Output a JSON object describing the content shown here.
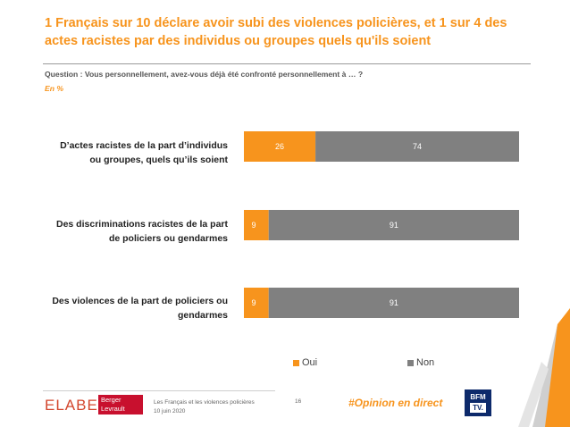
{
  "header": {
    "title": "1 Français sur 10 déclare avoir subi des violences policières, et 1 sur 4 des actes racistes par des individus ou groupes quels qu'ils soient",
    "question": "Question : Vous personnellement, avez-vous déjà été confronté personnellement à … ?",
    "unit": "En %"
  },
  "chart_data": {
    "type": "bar",
    "orientation": "horizontal",
    "stacked": true,
    "categories": [
      "D’actes racistes de la part d’individus ou groupes, quels qu’ils soient",
      "Des discriminations racistes de la part de policiers ou gendarmes",
      "Des violences de la part de policiers ou gendarmes"
    ],
    "category_lines": [
      [
        "D’actes racistes de la part d’individus",
        "ou groupes, quels qu’ils soient"
      ],
      [
        "Des discriminations racistes de la part",
        "de policiers ou gendarmes"
      ],
      [
        "Des violences de la part de policiers ou",
        "gendarmes"
      ]
    ],
    "series": [
      {
        "name": "Oui",
        "color": "#f7941d",
        "values": [
          26,
          9,
          9
        ]
      },
      {
        "name": "Non",
        "color": "#808080",
        "values": [
          74,
          91,
          91
        ]
      }
    ],
    "xlim": [
      0,
      100
    ],
    "legend_position": "bottom",
    "grid": false
  },
  "footer": {
    "brand_elabe": "ELABE",
    "brand_partner": "Berger Levrault",
    "source_line1": "Les Français et les violences policières",
    "source_line2": "10 juin 2020",
    "page_number": "16",
    "hashtag": "#Opinion en direct",
    "media_logo_top": "BFM",
    "media_logo_bottom": "TV."
  }
}
